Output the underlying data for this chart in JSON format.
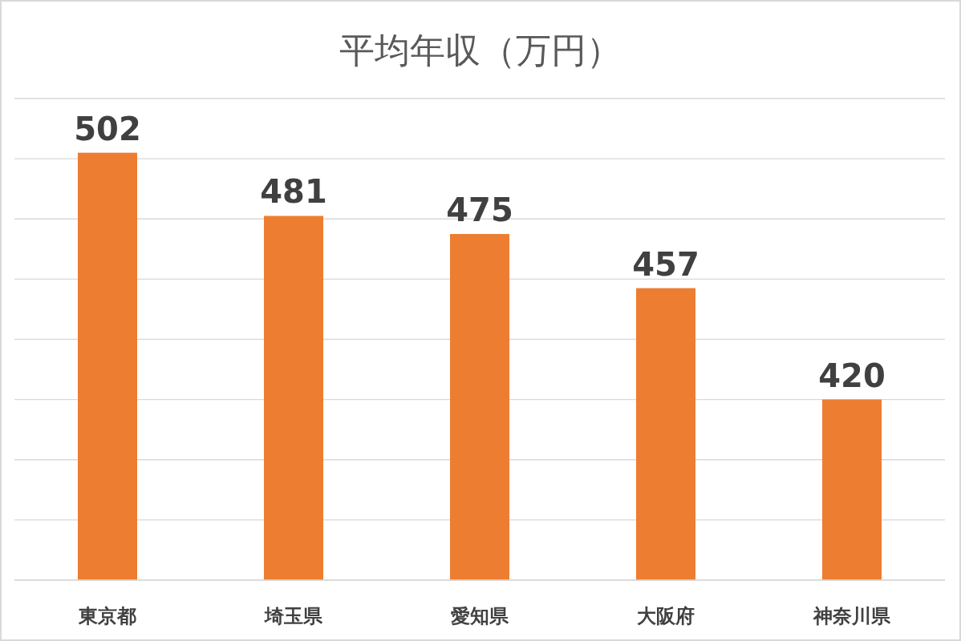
{
  "chart_data": {
    "type": "bar",
    "title": "平均年収（万円）",
    "categories": [
      "東京都",
      "埼玉県",
      "愛知県",
      "大阪府",
      "神奈川県"
    ],
    "values": [
      502,
      481,
      475,
      457,
      420
    ],
    "color": "#ed7d31",
    "ylim": [
      360,
      520
    ],
    "yticks": [
      {
        "value": 360,
        "label": null
      },
      {
        "value": 380,
        "label": null
      },
      {
        "value": 400,
        "label": null
      },
      {
        "value": 420,
        "label": null
      },
      {
        "value": 440,
        "label": null
      },
      {
        "value": 460,
        "label": null
      },
      {
        "value": 480,
        "label": null
      },
      {
        "value": 500,
        "label": null
      },
      {
        "value": 520,
        "label": null
      }
    ],
    "grid": "y",
    "data_labels": true
  }
}
